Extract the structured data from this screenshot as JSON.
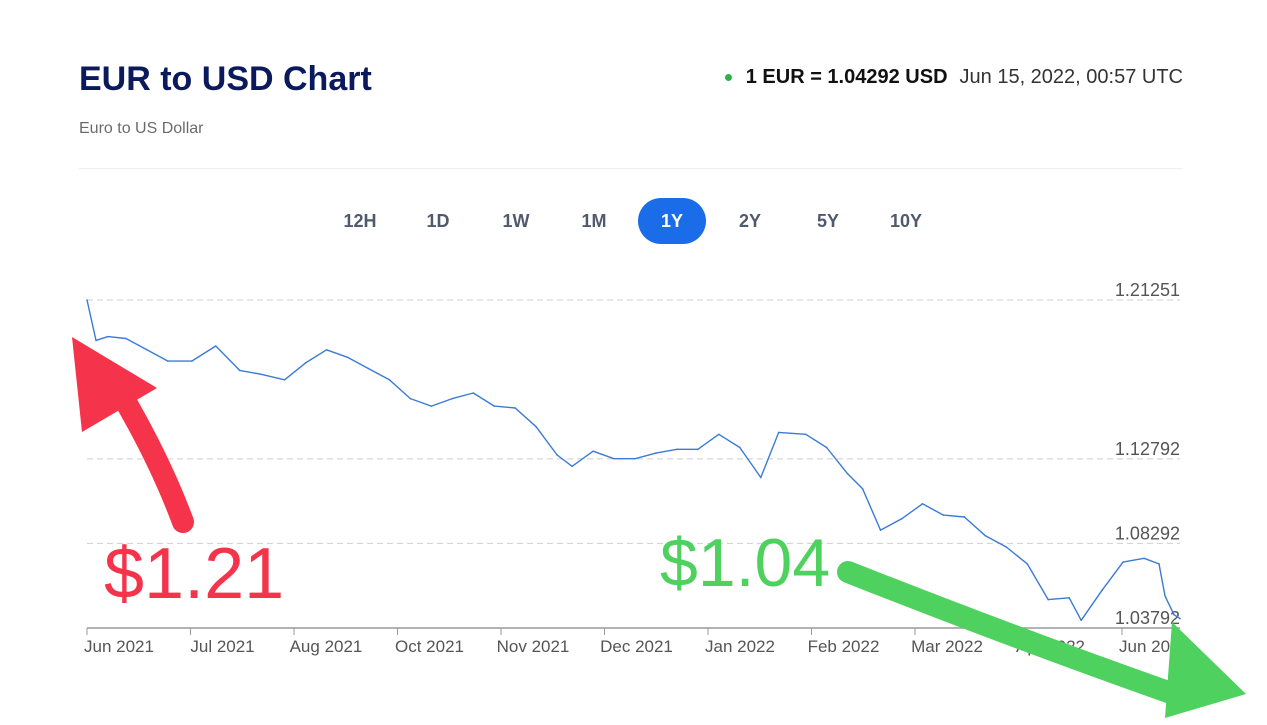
{
  "header": {
    "title": "EUR to USD Chart",
    "subtitle": "Euro to US Dollar",
    "rate": "1 EUR = 1.04292 USD",
    "timestamp": "Jun 15, 2022, 00:57 UTC"
  },
  "tabs": [
    {
      "label": "12H",
      "active": false
    },
    {
      "label": "1D",
      "active": false
    },
    {
      "label": "1W",
      "active": false
    },
    {
      "label": "1M",
      "active": false
    },
    {
      "label": "1Y",
      "active": true
    },
    {
      "label": "2Y",
      "active": false
    },
    {
      "label": "5Y",
      "active": false
    },
    {
      "label": "10Y",
      "active": false
    }
  ],
  "colors": {
    "title": "#0a1a5c",
    "accent": "#1a6ce8",
    "line": "#3a7bd5",
    "status_dot": "#2bb24c",
    "annotation_start": "#f5334a",
    "annotation_end": "#4fd15f"
  },
  "annotations": {
    "start_label": "$1.21",
    "end_label": "$1.04"
  },
  "chart_data": {
    "type": "line",
    "title": "EUR to USD Chart",
    "xlabel": "",
    "ylabel": "",
    "grid": true,
    "ylim": [
      1.0379,
      1.2125
    ],
    "yticks": [
      "1.21251",
      "1.12792",
      "1.08292",
      "1.03792"
    ],
    "x_tick_labels": [
      "Jun 2021",
      "Jul 2021",
      "Aug 2021",
      "Oct 2021",
      "Nov 2021",
      "Dec 2021",
      "Jan 2022",
      "Feb 2022",
      "Mar 2022",
      "Apr 2022",
      "Jun 2022"
    ],
    "series": [
      {
        "x": [
          "2021-06-15",
          "2021-06-18",
          "2021-06-22",
          "2021-06-28",
          "2021-07-05",
          "2021-07-12",
          "2021-07-20",
          "2021-07-28",
          "2021-08-05",
          "2021-08-12",
          "2021-08-20",
          "2021-08-27",
          "2021-09-03",
          "2021-09-10",
          "2021-09-17",
          "2021-09-24",
          "2021-10-01",
          "2021-10-08",
          "2021-10-15",
          "2021-10-22",
          "2021-10-29",
          "2021-11-05",
          "2021-11-12",
          "2021-11-19",
          "2021-11-24",
          "2021-12-01",
          "2021-12-08",
          "2021-12-15",
          "2021-12-22",
          "2021-12-29",
          "2022-01-05",
          "2022-01-12",
          "2022-01-19",
          "2022-01-26",
          "2022-02-01",
          "2022-02-10",
          "2022-02-17",
          "2022-02-24",
          "2022-03-01",
          "2022-03-07",
          "2022-03-14",
          "2022-03-21",
          "2022-03-28",
          "2022-04-04",
          "2022-04-11",
          "2022-04-18",
          "2022-04-25",
          "2022-05-02",
          "2022-05-09",
          "2022-05-13",
          "2022-05-20",
          "2022-05-27",
          "2022-06-03",
          "2022-06-08",
          "2022-06-10",
          "2022-06-13",
          "2022-06-15"
        ],
        "values": [
          1.2125,
          1.191,
          1.193,
          1.192,
          1.186,
          1.18,
          1.18,
          1.188,
          1.175,
          1.173,
          1.17,
          1.179,
          1.186,
          1.182,
          1.176,
          1.17,
          1.16,
          1.156,
          1.16,
          1.163,
          1.156,
          1.155,
          1.145,
          1.13,
          1.124,
          1.132,
          1.128,
          1.128,
          1.131,
          1.133,
          1.133,
          1.141,
          1.134,
          1.118,
          1.142,
          1.141,
          1.134,
          1.12,
          1.112,
          1.09,
          1.096,
          1.104,
          1.098,
          1.097,
          1.087,
          1.081,
          1.072,
          1.053,
          1.054,
          1.042,
          1.058,
          1.073,
          1.075,
          1.072,
          1.055,
          1.045,
          1.0429
        ]
      }
    ]
  }
}
